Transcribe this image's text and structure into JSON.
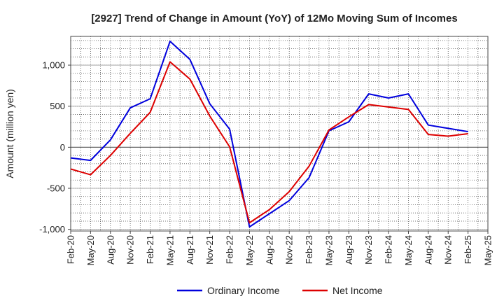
{
  "chart_data": {
    "type": "line",
    "title": "[2927]  Trend of Change in Amount (YoY) of 12Mo Moving Sum of Incomes",
    "xlabel": "",
    "ylabel": "Amount (million yen)",
    "ylim": [
      -1020,
      1350
    ],
    "yticks": [
      -1000,
      -500,
      0,
      500,
      1000
    ],
    "ytick_labels": [
      "-1,000",
      "-500",
      "0",
      "500",
      "1,000"
    ],
    "categories": [
      "Feb-20",
      "May-20",
      "Aug-20",
      "Nov-20",
      "Feb-21",
      "May-21",
      "Aug-21",
      "Nov-21",
      "Feb-22",
      "May-22",
      "Aug-22",
      "Nov-22",
      "Feb-23",
      "May-23",
      "Aug-23",
      "Nov-23",
      "Feb-24",
      "May-24",
      "Aug-24",
      "Nov-24",
      "Feb-25",
      "May-25"
    ],
    "grid": true,
    "legend_position": "bottom",
    "series": [
      {
        "name": "Ordinary Income",
        "color": "#0000dd",
        "values": [
          -130,
          -160,
          90,
          480,
          590,
          1290,
          1070,
          530,
          220,
          -970,
          -810,
          -650,
          -370,
          200,
          310,
          650,
          600,
          650,
          270,
          230,
          190,
          null
        ]
      },
      {
        "name": "Net Income",
        "color": "#dd0000",
        "values": [
          -265,
          -335,
          -100,
          170,
          425,
          1040,
          830,
          380,
          5,
          -920,
          -760,
          -540,
          -230,
          210,
          370,
          520,
          490,
          460,
          155,
          135,
          165,
          null
        ]
      }
    ]
  }
}
